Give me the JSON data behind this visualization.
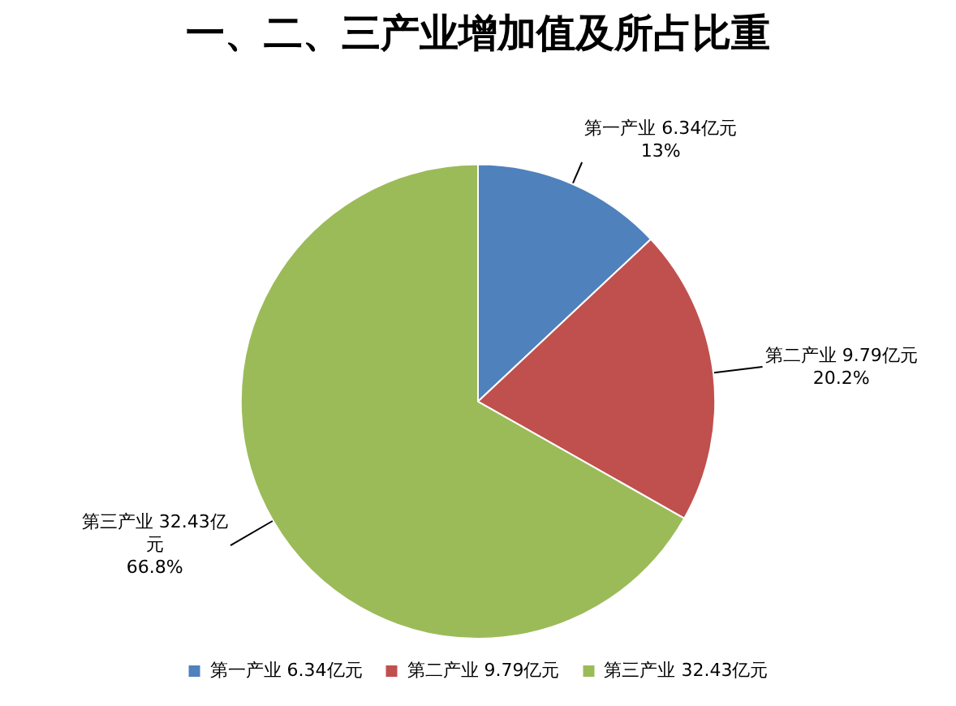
{
  "chart_data": {
    "type": "pie",
    "title": "一、二、三产业增加值及所占比重",
    "categories": [
      "第一产业 6.34亿元",
      "第二产业 9.79亿元",
      "第三产业 32.43亿元"
    ],
    "values": [
      13,
      20.2,
      66.8
    ],
    "colors": [
      "#4f81bd",
      "#c0504d",
      "#9bbb59"
    ],
    "value_labels": [
      "13%",
      "20.2%",
      "66.8%"
    ],
    "legend": "bottom"
  }
}
